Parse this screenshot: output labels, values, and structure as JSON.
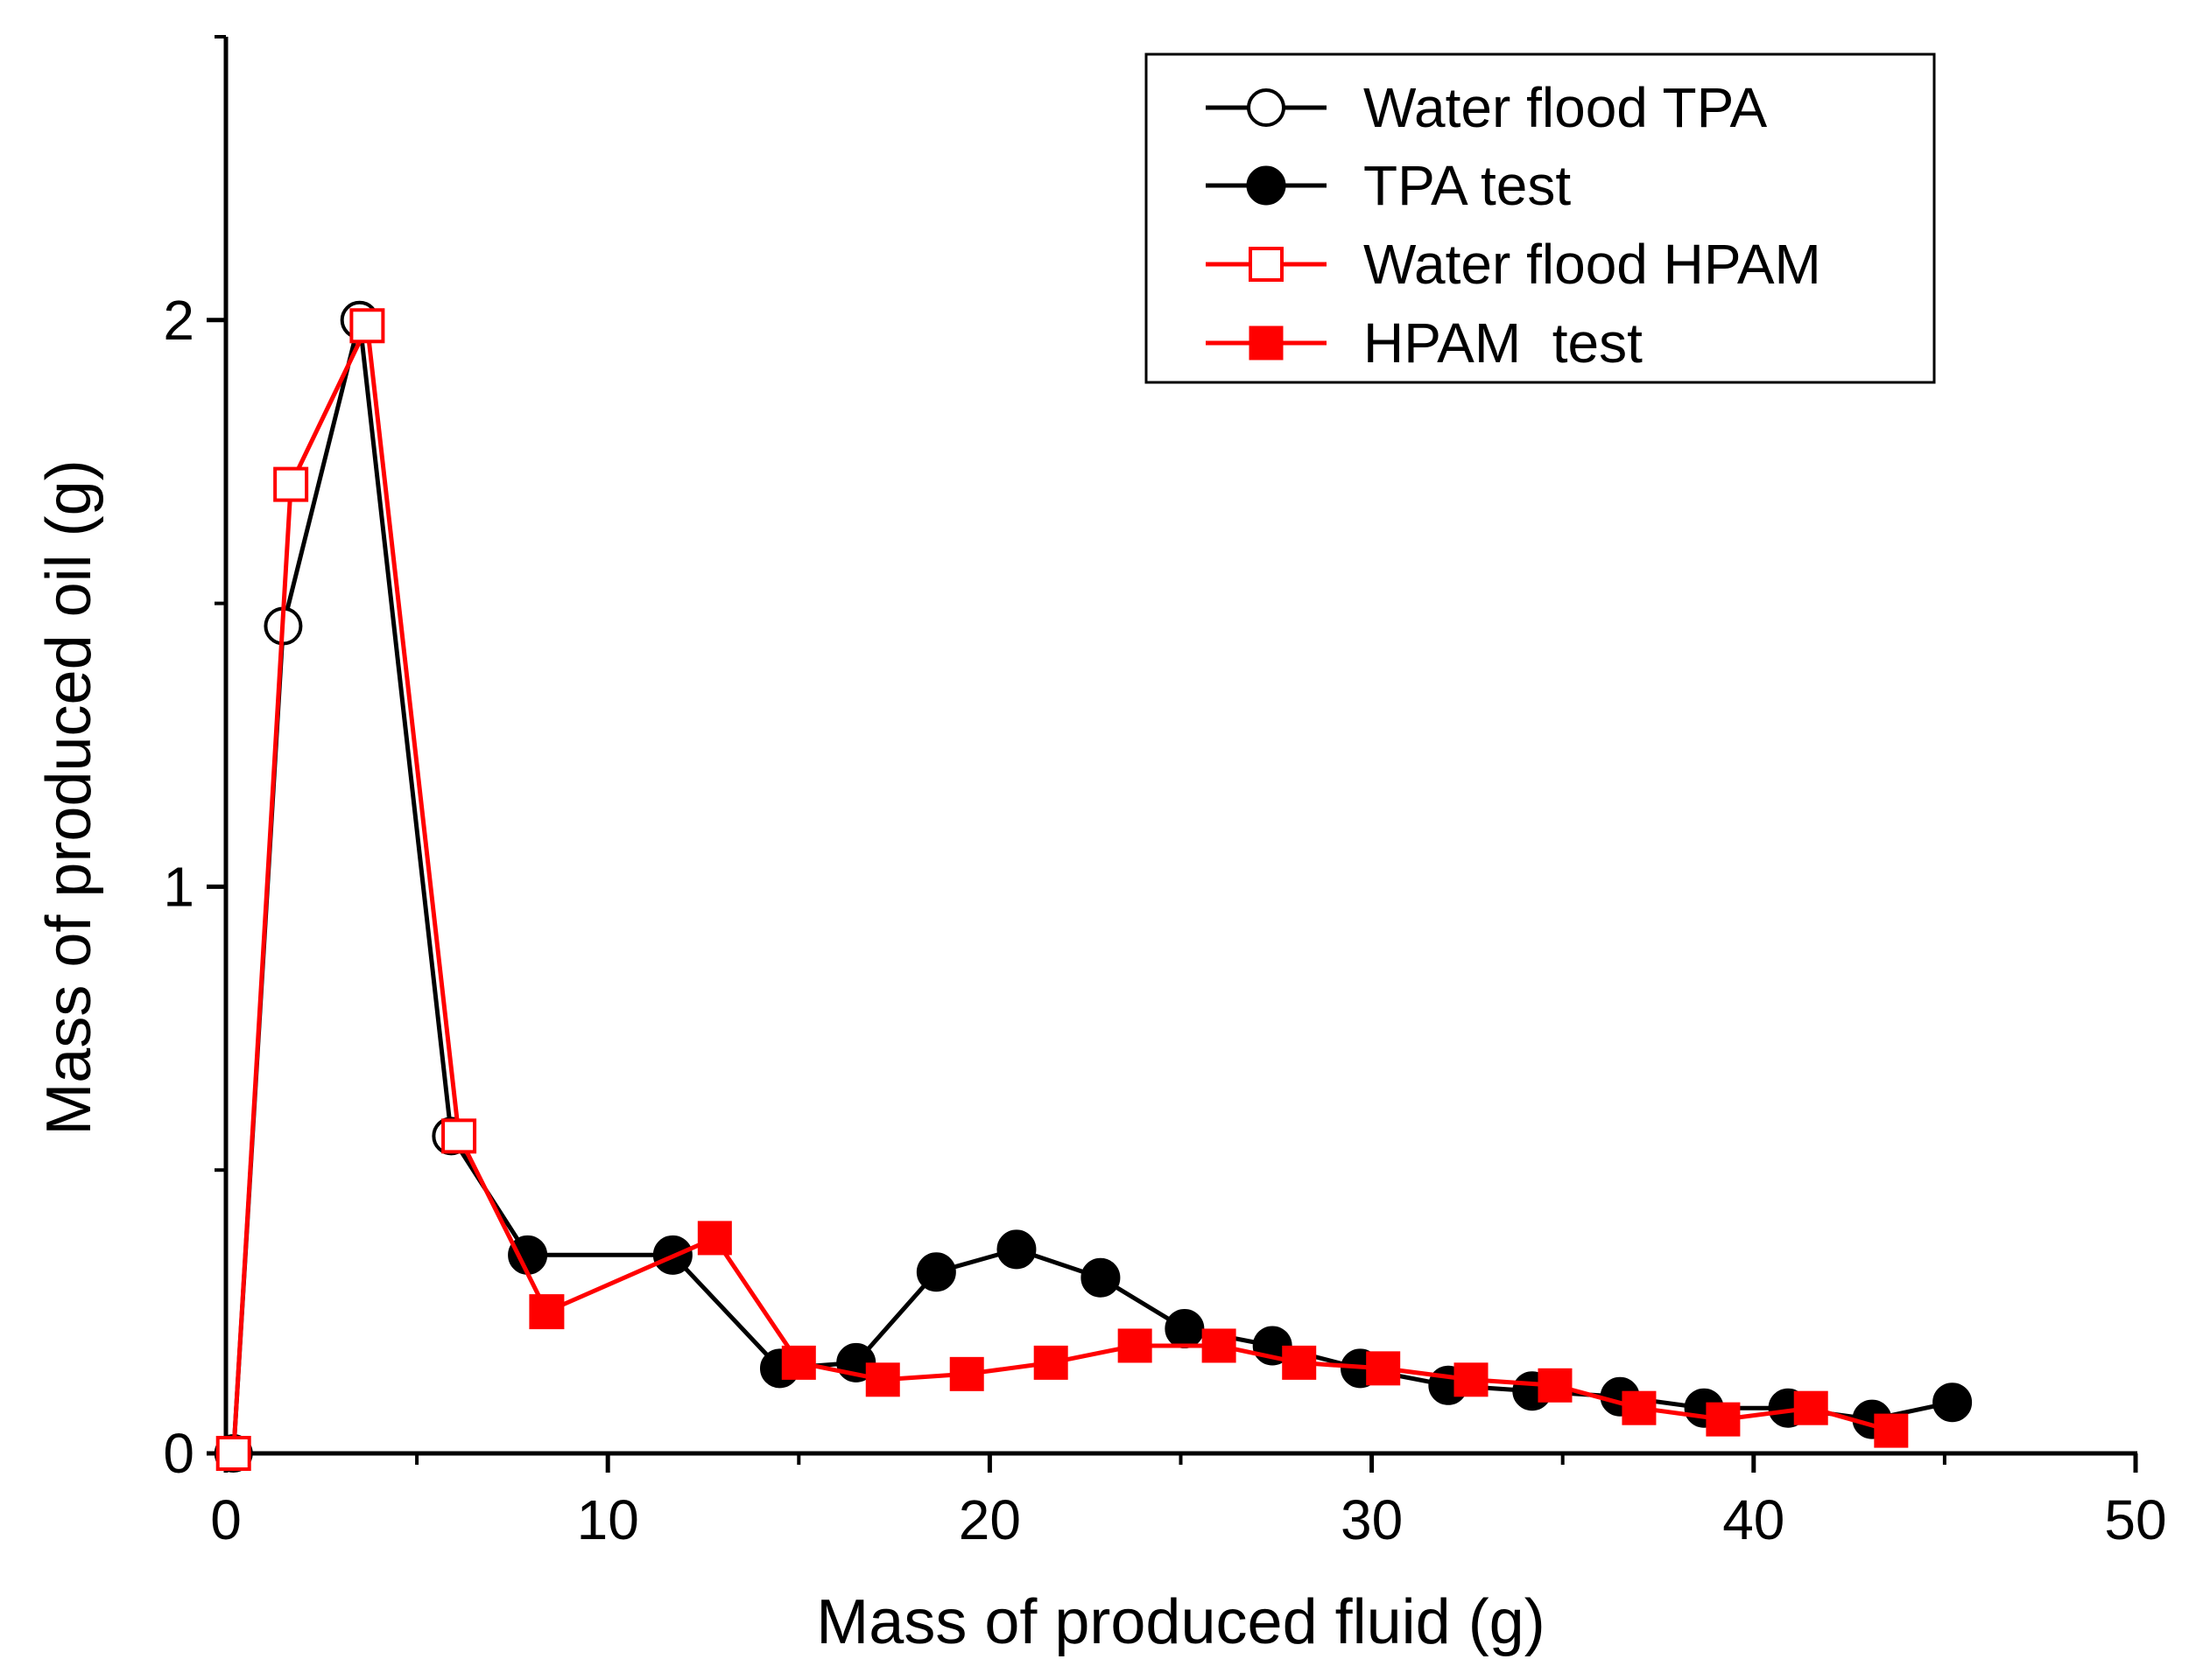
{
  "chart_data": {
    "type": "line",
    "title": "",
    "xlabel": "Mass of produced fluid (g)",
    "ylabel": "Mass of produced oil (g)",
    "xlim": [
      0,
      50
    ],
    "ylim": [
      0,
      2.5
    ],
    "x_ticks": [
      0,
      10,
      20,
      30,
      40,
      50
    ],
    "x_tick_labels": [
      "0",
      "10",
      "20",
      "30",
      "40",
      "50"
    ],
    "x_minor_ticks": [
      5,
      15,
      25,
      35,
      45
    ],
    "y_ticks": [
      0,
      1,
      2
    ],
    "y_tick_labels": [
      "0",
      "1",
      "2"
    ],
    "y_minor_ticks": [
      0.5,
      1.5,
      2.5
    ],
    "grid": false,
    "legend_position": "top-right",
    "series": [
      {
        "name": "Water flood TPA",
        "color": "#000000",
        "marker": "circle-open",
        "x": [
          0.2,
          1.5,
          3.5,
          5.9,
          7.9
        ],
        "y": [
          0.0,
          1.46,
          2.0,
          0.56,
          0.35
        ]
      },
      {
        "name": "TPA test",
        "color": "#000000",
        "marker": "circle-filled",
        "x": [
          7.9,
          11.7,
          14.5,
          16.5,
          18.6,
          20.7,
          22.9,
          25.1,
          27.4,
          29.7,
          32.0,
          34.2,
          36.5,
          38.7,
          40.9,
          43.1,
          45.2
        ],
        "y": [
          0.35,
          0.35,
          0.15,
          0.16,
          0.32,
          0.36,
          0.31,
          0.22,
          0.19,
          0.15,
          0.12,
          0.11,
          0.1,
          0.08,
          0.08,
          0.06,
          0.09
        ]
      },
      {
        "name": "Water flood HPAM",
        "color": "#ff0000",
        "marker": "square-open",
        "x": [
          0.2,
          1.7,
          3.7,
          6.1,
          8.4
        ],
        "y": [
          0.0,
          1.71,
          1.99,
          0.56,
          0.25
        ]
      },
      {
        "name": "HPAM  test",
        "color": "#ff0000",
        "marker": "square-filled",
        "x": [
          8.4,
          12.8,
          15.0,
          17.2,
          19.4,
          21.6,
          23.8,
          26.0,
          28.1,
          30.3,
          32.6,
          34.8,
          37.0,
          39.2,
          41.5,
          43.6
        ],
        "y": [
          0.25,
          0.38,
          0.16,
          0.13,
          0.14,
          0.16,
          0.19,
          0.19,
          0.16,
          0.15,
          0.13,
          0.12,
          0.08,
          0.06,
          0.08,
          0.04
        ]
      }
    ]
  }
}
